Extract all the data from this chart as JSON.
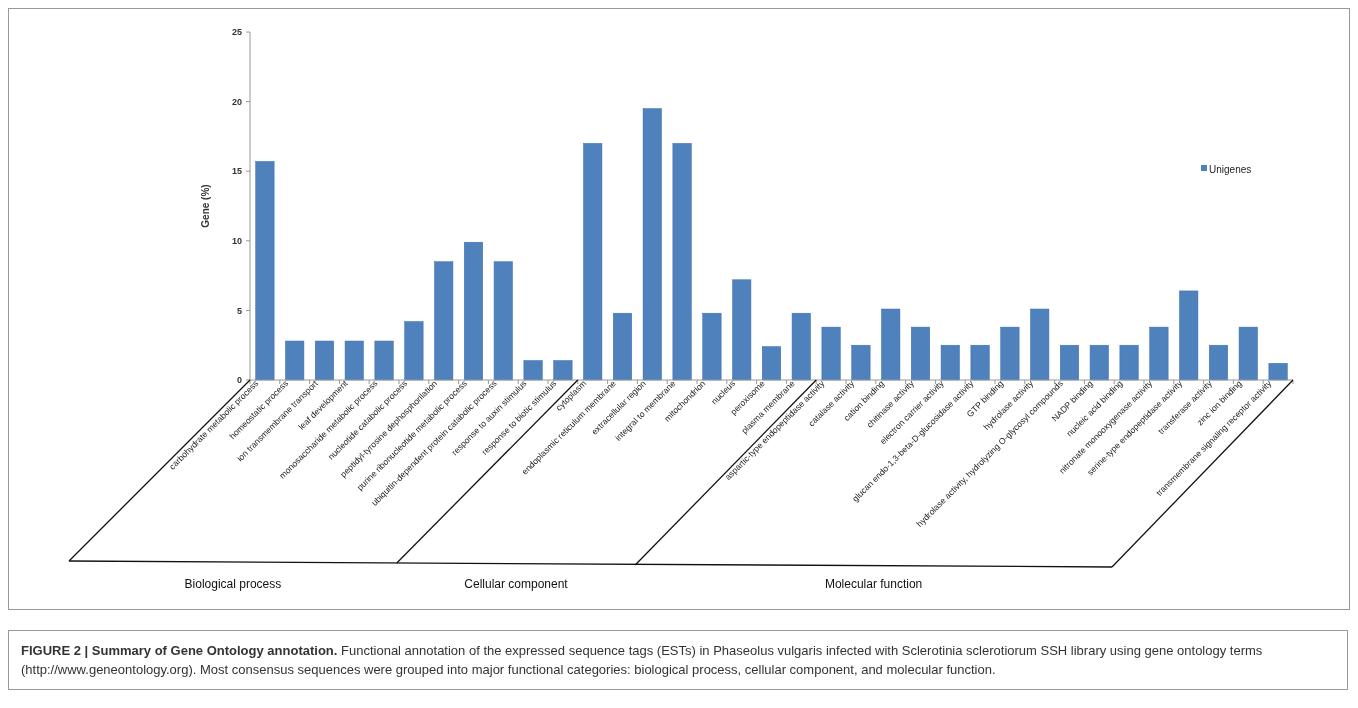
{
  "chart_data": {
    "type": "bar",
    "title": "FIGURE 2 | Summary of Gene Ontology annotation.",
    "ylabel": "Gene (%)",
    "annotations": [
      "Biological process",
      "Cellular component",
      "Molecular function",
      "Functional annotation of the expressed sequence tags (ESTs) in Phaseolus vulgaris infected with Sclerotinia sclerotiorum SSH library using gene ontology terms (http://www.geneontology.org). Most consensus sequences were grouped into major functional categories: biological process, cellular component, and molecular function."
    ],
    "categories": [
      "carbohydrate metabolic process",
      "homeostatic process",
      "ion transmembrane transport",
      "leaf development",
      "monosaccharide metabolic process",
      "nucleotide catabolic process",
      "peptidyl-tyrosine dephosphorilation",
      "purine ribonucleotide metabolic process",
      "ubiquitin-dependent protein catabolic process",
      "response to auxin stimulus",
      "response to biotic stimulus",
      "cytoplasm",
      "endoplasmic reticulum membrane",
      "extracellular region",
      "integral to membrane",
      "mitochondrion",
      "nucleus",
      "peroxisome",
      "plasma membrane",
      "aspartic-type endopeptidase activity",
      "catalase activity",
      "cation binding",
      "chitinase activity",
      "electron carrier activity",
      "glucan endo-1,3-beta-D-glucosidase activity",
      "GTP binding",
      "hydrolase activity",
      "hydrolase activity, hydrolyzing O-glycosyl compounds",
      "NADP binding",
      "nucleic acid binding",
      "nitronate monooxygenase activity",
      "serine-type endopeptidase activity",
      "transferase activity",
      "zinc ion binding",
      "transmembrane signaling receptor activity"
    ],
    "series": [
      {
        "name": "Unigenes",
        "color": "#4f81bd",
        "values": [
          15.7,
          2.8,
          2.8,
          2.8,
          2.8,
          4.2,
          8.5,
          9.9,
          8.5,
          1.4,
          1.4,
          17.0,
          4.8,
          19.5,
          17.0,
          4.8,
          7.2,
          2.4,
          4.8,
          3.8,
          2.5,
          5.1,
          3.8,
          2.5,
          2.5,
          3.8,
          5.1,
          2.5,
          2.5,
          2.5,
          3.8,
          6.4,
          2.5,
          3.8,
          1.2
        ]
      }
    ],
    "ylim": [
      0,
      25
    ],
    "yticks": [
      0,
      5,
      10,
      15,
      20,
      25
    ],
    "grid": false,
    "legend": "right"
  }
}
